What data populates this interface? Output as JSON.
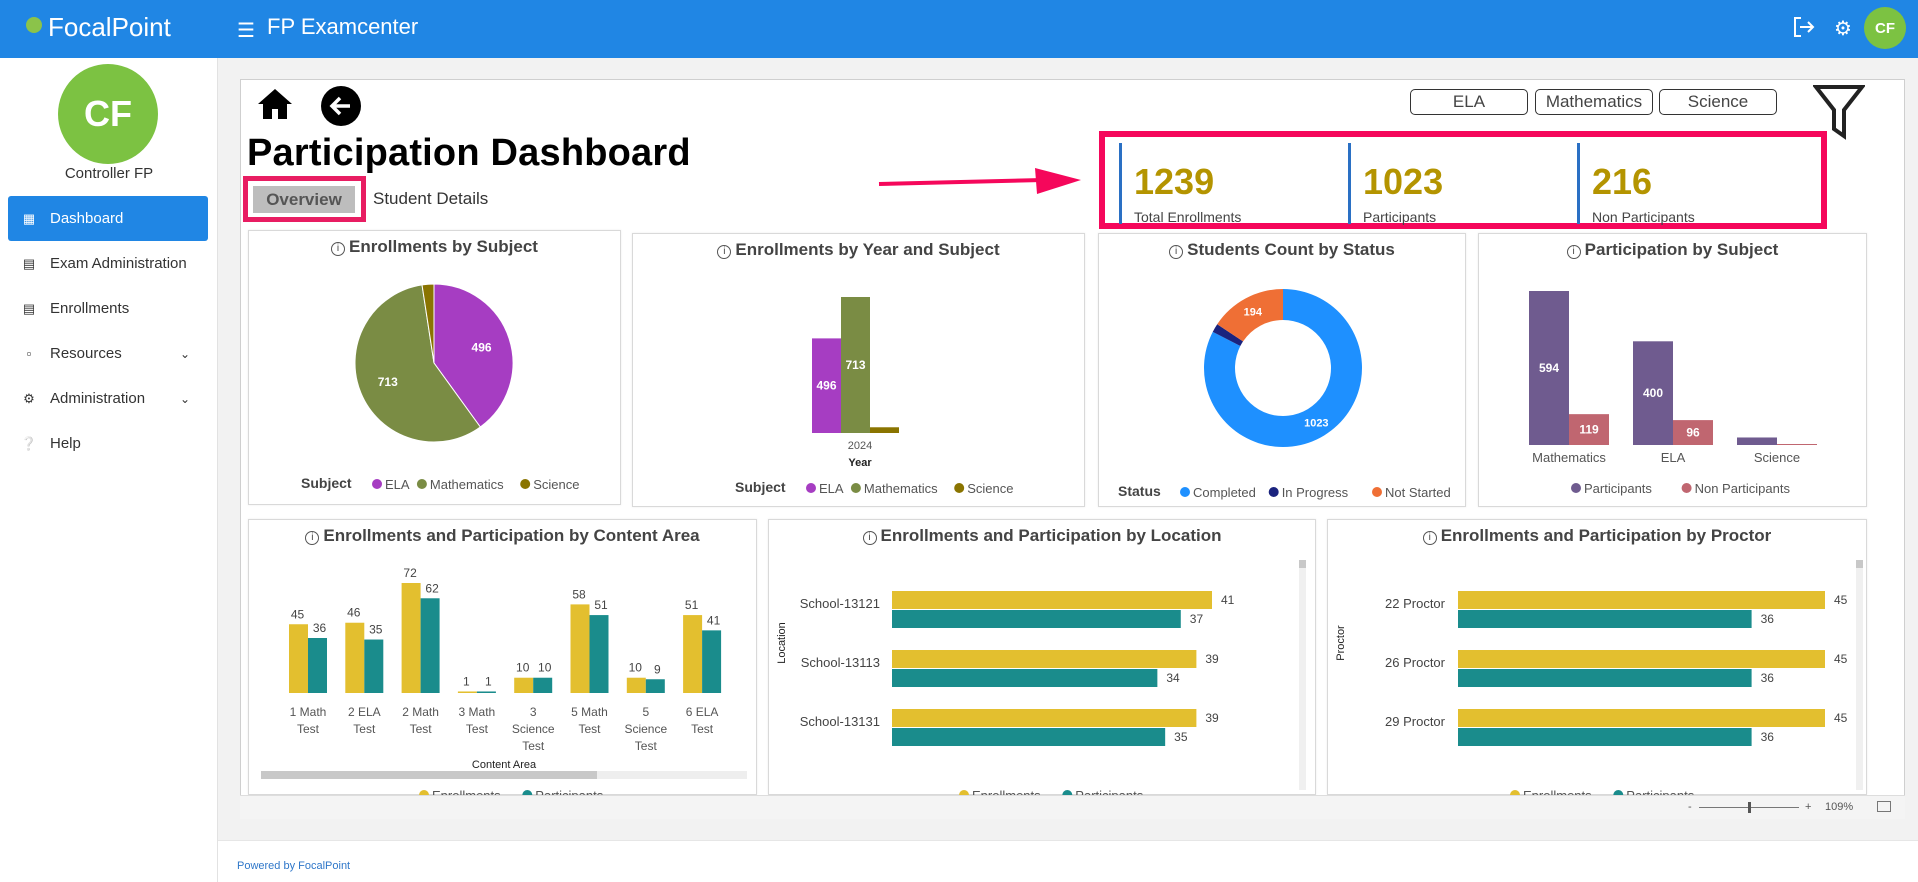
{
  "header": {
    "brand": "FocalPoint",
    "app_title": "FP Examcenter",
    "avatar_initials": "CF"
  },
  "sidebar": {
    "avatar_initials": "CF",
    "user_name": "Controller FP",
    "items": [
      {
        "label": "Dashboard",
        "icon": "dashboard-icon",
        "active": true
      },
      {
        "label": "Exam Administration",
        "icon": "exam-admin-icon"
      },
      {
        "label": "Enrollments",
        "icon": "enrollments-icon"
      },
      {
        "label": "Resources",
        "icon": "clipboard-icon",
        "expandable": true
      },
      {
        "label": "Administration",
        "icon": "gear-icon",
        "expandable": true
      },
      {
        "label": "Help",
        "icon": "help-icon"
      }
    ]
  },
  "footer": {
    "text": "Powered by FocalPoint"
  },
  "report": {
    "title": "Participation Dashboard",
    "tabs": [
      "Overview",
      "Student Details"
    ],
    "active_tab": "Overview",
    "subject_filters": [
      "ELA",
      "Mathematics",
      "Science"
    ],
    "kpis": [
      {
        "value": "1239",
        "label": "Total Enrollments"
      },
      {
        "value": "1023",
        "label": "Participants"
      },
      {
        "value": "216",
        "label": "Non Participants"
      }
    ],
    "zoom": "109%",
    "colors": {
      "ela": "#a63dc2",
      "mathematics": "#7a8c44",
      "science": "#8a7400",
      "completed": "#1e90ff",
      "in_progress": "#1a237e",
      "not_started": "#ef6f35",
      "participants": "#6f5b8f",
      "non_participants": "#c06670",
      "enrollments": "#e3bf2f",
      "participants_teal": "#1a8c8c",
      "kpi_value": "#b49400",
      "highlight": "#f5075b"
    }
  },
  "chart_data": [
    {
      "type": "pie",
      "title": "Enrollments by Subject",
      "legend_title": "Subject",
      "labels": [
        "ELA",
        "Mathematics",
        "Science"
      ],
      "values": [
        496,
        713,
        30
      ]
    },
    {
      "type": "bar",
      "title": "Enrollments by Year and Subject",
      "xlabel": "Year",
      "legend_title": "Subject",
      "categories": [
        "2024"
      ],
      "series": [
        {
          "name": "ELA",
          "values": [
            496
          ]
        },
        {
          "name": "Mathematics",
          "values": [
            713
          ]
        },
        {
          "name": "Science",
          "values": [
            30
          ]
        }
      ]
    },
    {
      "type": "pie",
      "title": "Students Count by Status",
      "legend_title": "Status",
      "labels": [
        "Completed",
        "In Progress",
        "Not Started"
      ],
      "values": [
        1023,
        22,
        194
      ]
    },
    {
      "type": "bar",
      "title": "Participation by Subject",
      "categories": [
        "Mathematics",
        "ELA",
        "Science"
      ],
      "series": [
        {
          "name": "Participants",
          "values": [
            594,
            400,
            29
          ]
        },
        {
          "name": "Non Participants",
          "values": [
            119,
            96,
            1
          ]
        }
      ]
    },
    {
      "type": "bar",
      "title": "Enrollments and Participation by Content Area",
      "xlabel": "Content Area",
      "categories": [
        "1 Math Test",
        "2 ELA Test",
        "2 Math Test",
        "3 Math Test",
        "3 Science Test",
        "5 Math Test",
        "5 Science Test",
        "6 ELA Test"
      ],
      "series": [
        {
          "name": "Enrollments",
          "values": [
            45,
            46,
            72,
            1,
            10,
            58,
            10,
            51
          ]
        },
        {
          "name": "Participants",
          "values": [
            36,
            35,
            62,
            1,
            10,
            51,
            9,
            41
          ]
        }
      ]
    },
    {
      "type": "bar",
      "orientation": "horizontal",
      "title": "Enrollments and Participation by Location",
      "ylabel": "Location",
      "categories": [
        "School-13121",
        "School-13113",
        "School-13131"
      ],
      "series": [
        {
          "name": "Enrollments",
          "values": [
            41,
            39,
            39
          ]
        },
        {
          "name": "Participants",
          "values": [
            37,
            34,
            35
          ]
        }
      ]
    },
    {
      "type": "bar",
      "orientation": "horizontal",
      "title": "Enrollments and Participation by Proctor",
      "ylabel": "Proctor",
      "categories": [
        "22 Proctor",
        "26 Proctor",
        "29 Proctor"
      ],
      "series": [
        {
          "name": "Enrollments",
          "values": [
            45,
            45,
            45
          ]
        },
        {
          "name": "Participants",
          "values": [
            36,
            36,
            36
          ]
        }
      ]
    }
  ]
}
